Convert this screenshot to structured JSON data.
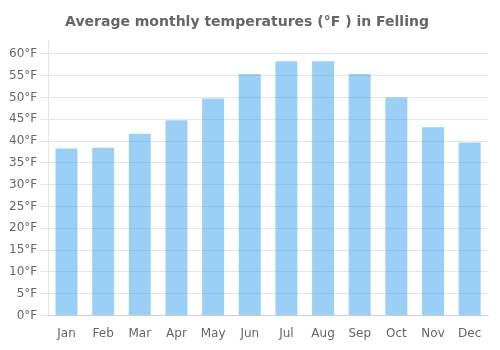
{
  "chart_data": {
    "type": "bar",
    "title": "Average monthly temperatures (°F ) in Felling",
    "categories": [
      "Jan",
      "Feb",
      "Mar",
      "Apr",
      "May",
      "Jun",
      "Jul",
      "Aug",
      "Sep",
      "Oct",
      "Nov",
      "Dec"
    ],
    "values": [
      38.3,
      38.5,
      41.7,
      44.8,
      49.8,
      55.4,
      58.3,
      58.3,
      55.4,
      50.0,
      43.2,
      39.7
    ],
    "ylim": [
      0,
      63
    ],
    "yticks": [
      {
        "value": 0,
        "label": "0°F"
      },
      {
        "value": 5,
        "label": "5°F"
      },
      {
        "value": 10,
        "label": "10°F"
      },
      {
        "value": 15,
        "label": "15°F"
      },
      {
        "value": 20,
        "label": "20°F"
      },
      {
        "value": 25,
        "label": "25°F"
      },
      {
        "value": 30,
        "label": "30°F"
      },
      {
        "value": 35,
        "label": "35°F"
      },
      {
        "value": 40,
        "label": "40°F"
      },
      {
        "value": 45,
        "label": "45°F"
      },
      {
        "value": 50,
        "label": "50°F"
      },
      {
        "value": 55,
        "label": "55°F"
      },
      {
        "value": 60,
        "label": "60°F"
      }
    ],
    "grid": true
  }
}
